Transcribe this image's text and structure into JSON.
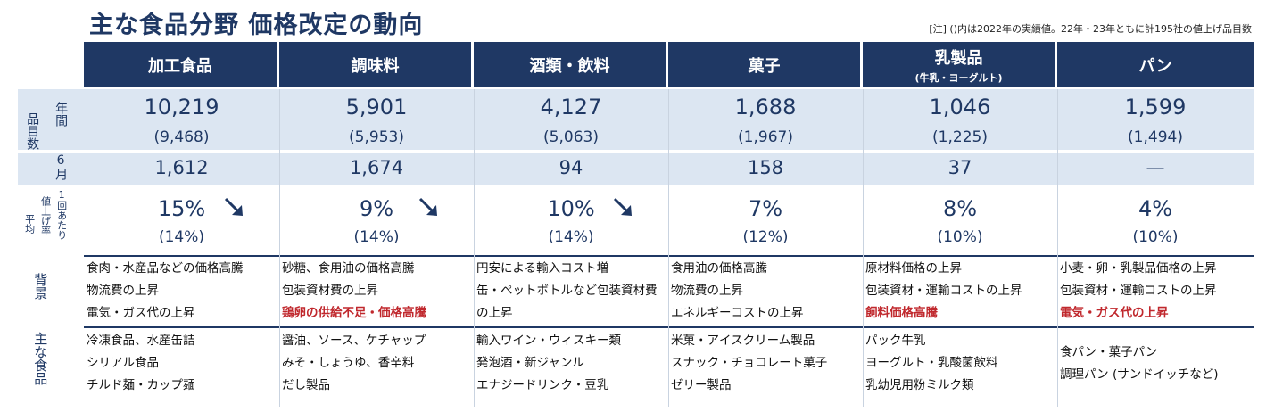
{
  "title": "主な食品分野  価格改定の動向",
  "note": "[注] ()内は2022年の実績値。22年・23年ともに計195社の値上げ品目数",
  "row_labels": {
    "items_outer": "品目数",
    "year": "年間",
    "june": "6月",
    "avg_rate": "値上げ率",
    "avg_outer": "平均",
    "per_time": "1回あたり",
    "background": "背景",
    "foods": "主な食品"
  },
  "columns": [
    {
      "name": "加工食品",
      "sub": "",
      "year": "10,219",
      "year_prev": "(9,468)",
      "june": "1,612",
      "rate": "15%",
      "rate_prev": "(14%)",
      "arrow": true,
      "background": [
        "食肉・水産品などの価格高騰",
        "物流費の上昇",
        "電気・ガス代の上昇"
      ],
      "background_highlight": [
        false,
        false,
        false
      ],
      "foods": [
        "冷凍食品、水産缶詰",
        "シリアル食品",
        "チルド麺・カップ麺"
      ]
    },
    {
      "name": "調味料",
      "sub": "",
      "year": "5,901",
      "year_prev": "(5,953)",
      "june": "1,674",
      "rate": "9%",
      "rate_prev": "(14%)",
      "arrow": true,
      "background": [
        "砂糖、食用油の価格高騰",
        "包装資材費の上昇",
        "鶏卵の供給不足・価格高騰"
      ],
      "background_highlight": [
        false,
        false,
        true
      ],
      "foods": [
        "醤油、ソース、ケチャップ",
        "みそ・しょうゆ、香辛料",
        "だし製品"
      ]
    },
    {
      "name": "酒類・飲料",
      "sub": "",
      "year": "4,127",
      "year_prev": "(5,063)",
      "june": "94",
      "rate": "10%",
      "rate_prev": "(14%)",
      "arrow": true,
      "background": [
        "円安による輸入コスト増",
        "缶・ペットボトルなど包装資材費",
        "の上昇"
      ],
      "background_highlight": [
        false,
        false,
        false
      ],
      "foods": [
        "輸入ワイン・ウィスキー類",
        "発泡酒・新ジャンル",
        "エナジードリンク・豆乳"
      ]
    },
    {
      "name": "菓子",
      "sub": "",
      "year": "1,688",
      "year_prev": "(1,967)",
      "june": "158",
      "rate": "7%",
      "rate_prev": "(12%)",
      "arrow": false,
      "background": [
        "食用油の価格高騰",
        "物流費の上昇",
        "エネルギーコストの上昇"
      ],
      "background_highlight": [
        false,
        false,
        false
      ],
      "foods": [
        "米菓・アイスクリーム製品",
        "スナック・チョコレート菓子",
        "ゼリー製品"
      ]
    },
    {
      "name": "乳製品",
      "sub": "(牛乳・ヨーグルト)",
      "year": "1,046",
      "year_prev": "(1,225)",
      "june": "37",
      "rate": "8%",
      "rate_prev": "(10%)",
      "arrow": false,
      "background": [
        "原材料価格の上昇",
        "包装資材・運輸コストの上昇",
        "飼料価格高騰"
      ],
      "background_highlight": [
        false,
        false,
        true
      ],
      "foods": [
        "パック牛乳",
        "ヨーグルト・乳酸菌飲料",
        "乳幼児用粉ミルク類"
      ]
    },
    {
      "name": "パン",
      "sub": "",
      "year": "1,599",
      "year_prev": "(1,494)",
      "june": "—",
      "rate": "4%",
      "rate_prev": "(10%)",
      "arrow": false,
      "background": [
        "小麦・卵・乳製品価格の上昇",
        "包装資材・運輸コストの上昇",
        "電気・ガス代の上昇"
      ],
      "background_highlight": [
        false,
        false,
        true
      ],
      "foods": [
        "食パン・菓子パン",
        "調理パン (サンドイッチなど)"
      ]
    }
  ],
  "colors": {
    "navy": "#1f3864",
    "band": "#dce6f2",
    "highlight_red": "#c0282d"
  }
}
